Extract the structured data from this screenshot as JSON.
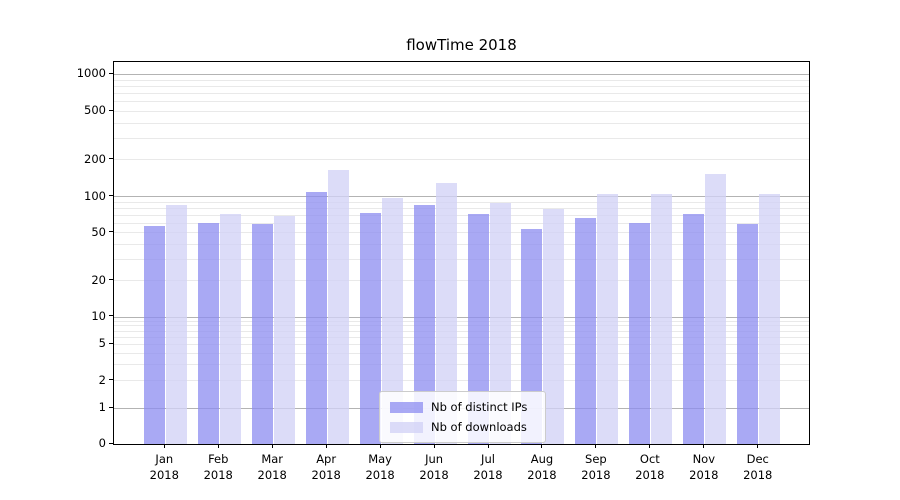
{
  "chart_data": {
    "type": "bar",
    "title": "flowTime 2018",
    "months": [
      "Jan",
      "Feb",
      "Mar",
      "Apr",
      "May",
      "Jun",
      "Jul",
      "Aug",
      "Sep",
      "Oct",
      "Nov",
      "Dec"
    ],
    "year": "2018",
    "series": [
      {
        "name": "Nb of distinct IPs",
        "color": "rgba(140,140,240,0.75)",
        "values": [
          57,
          60,
          59,
          109,
          73,
          85,
          72,
          54,
          66,
          60,
          72,
          59
        ]
      },
      {
        "name": "Nb of downloads",
        "color": "rgba(210,210,246,0.78)",
        "values": [
          85,
          71,
          69,
          164,
          98,
          130,
          88,
          79,
          105,
          105,
          153,
          104
        ]
      }
    ],
    "y_axis": {
      "scale": "symlog",
      "tick_labels": [
        "1000",
        "500",
        "200",
        "100",
        "50",
        "20",
        "10",
        "5",
        "2",
        "1",
        "0"
      ],
      "ylim": [
        0,
        1270
      ],
      "grid": "horizontal, log major lines at powers of 10 with faint minors"
    },
    "legend": {
      "position": "lower center"
    }
  }
}
